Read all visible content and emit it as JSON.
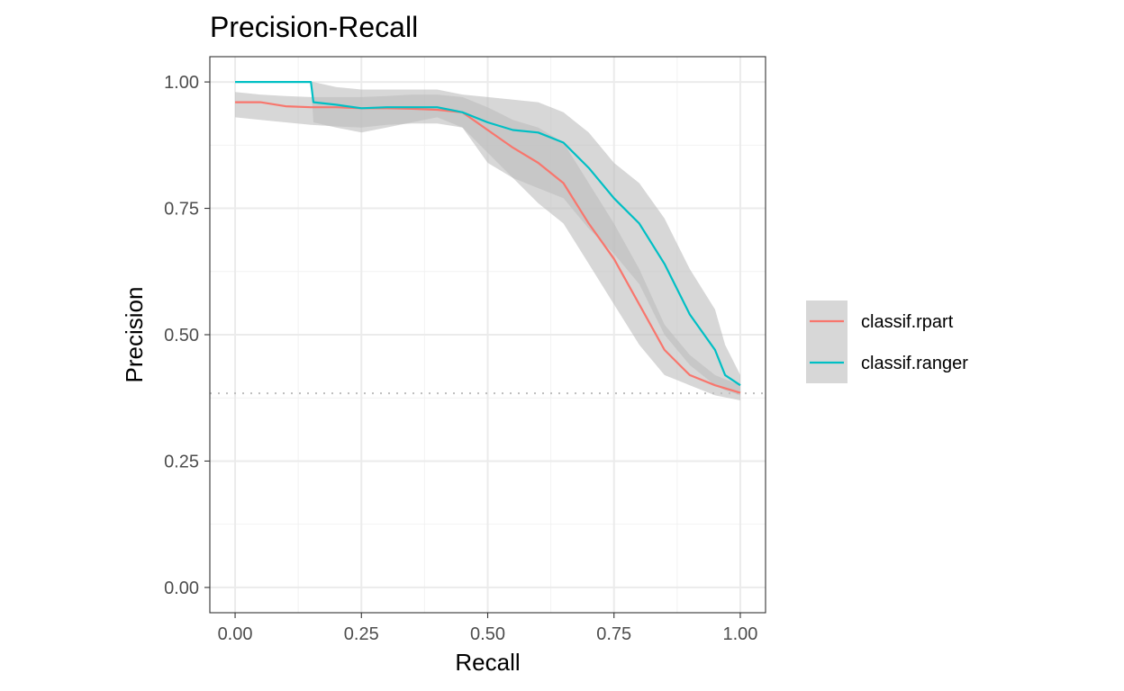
{
  "chart_data": {
    "type": "line",
    "title": "Precision-Recall",
    "xlabel": "Recall",
    "ylabel": "Precision",
    "xlim": [
      -0.05,
      1.05
    ],
    "ylim": [
      -0.05,
      1.05
    ],
    "x_ticks": [
      0,
      0.25,
      0.5,
      0.75,
      1
    ],
    "x_tick_labels": [
      "0.00",
      "0.25",
      "0.50",
      "0.75",
      "1.00"
    ],
    "y_ticks": [
      0,
      0.25,
      0.5,
      0.75,
      1
    ],
    "y_tick_labels": [
      "0.00",
      "0.25",
      "0.50",
      "0.75",
      "1.00"
    ],
    "grid": true,
    "legend_position": "right",
    "baseline": 0.384,
    "colors": {
      "classif.rpart": "#F8766D",
      "classif.ranger": "#00BFC4",
      "ribbon": "#bdbdbd",
      "baseline": "#bdbdbd"
    },
    "series": [
      {
        "name": "classif.rpart",
        "color": "#F8766D",
        "x": [
          0,
          0.05,
          0.1,
          0.15,
          0.2,
          0.25,
          0.3,
          0.35,
          0.4,
          0.45,
          0.5,
          0.55,
          0.6,
          0.65,
          0.7,
          0.75,
          0.8,
          0.85,
          0.9,
          0.95,
          1.0
        ],
        "y": [
          0.96,
          0.96,
          0.952,
          0.95,
          0.95,
          0.948,
          0.948,
          0.947,
          0.945,
          0.94,
          0.905,
          0.87,
          0.84,
          0.8,
          0.72,
          0.65,
          0.56,
          0.47,
          0.42,
          0.4,
          0.385
        ],
        "lower": [
          0.93,
          0.925,
          0.92,
          0.915,
          0.912,
          0.91,
          0.915,
          0.918,
          0.918,
          0.91,
          0.86,
          0.81,
          0.76,
          0.72,
          0.64,
          0.56,
          0.48,
          0.42,
          0.4,
          0.38,
          0.37
        ],
        "upper": [
          0.98,
          0.975,
          0.972,
          0.97,
          0.97,
          0.97,
          0.972,
          0.975,
          0.975,
          0.97,
          0.95,
          0.925,
          0.91,
          0.88,
          0.8,
          0.72,
          0.63,
          0.52,
          0.46,
          0.42,
          0.4
        ]
      },
      {
        "name": "classif.ranger",
        "color": "#00BFC4",
        "x": [
          0,
          0.05,
          0.1,
          0.15,
          0.155,
          0.2,
          0.25,
          0.3,
          0.35,
          0.4,
          0.45,
          0.5,
          0.55,
          0.6,
          0.65,
          0.7,
          0.75,
          0.8,
          0.85,
          0.9,
          0.95,
          0.97,
          1.0
        ],
        "y": [
          1.0,
          1.0,
          1.0,
          1.0,
          0.96,
          0.955,
          0.948,
          0.95,
          0.95,
          0.95,
          0.94,
          0.92,
          0.905,
          0.9,
          0.88,
          0.83,
          0.77,
          0.72,
          0.64,
          0.54,
          0.47,
          0.42,
          0.4
        ],
        "lower": [
          1.0,
          1.0,
          1.0,
          1.0,
          0.92,
          0.91,
          0.9,
          0.91,
          0.92,
          0.93,
          0.91,
          0.84,
          0.81,
          0.79,
          0.77,
          0.71,
          0.66,
          0.6,
          0.5,
          0.44,
          0.4,
          0.39,
          0.38
        ],
        "upper": [
          1.0,
          1.0,
          1.0,
          1.0,
          1.0,
          0.99,
          0.985,
          0.985,
          0.985,
          0.985,
          0.975,
          0.97,
          0.965,
          0.96,
          0.94,
          0.9,
          0.84,
          0.8,
          0.73,
          0.63,
          0.55,
          0.48,
          0.42
        ]
      }
    ]
  }
}
